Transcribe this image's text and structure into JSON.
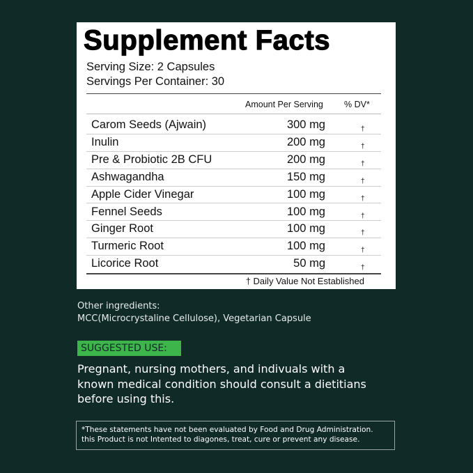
{
  "facts": {
    "title": "Supplement Facts",
    "serving_size": "Serving Size: 2 Capsules",
    "servings_per_container": "Servings Per Container: 30",
    "col_amount": "Amount Per Serving",
    "col_dv": "% DV*",
    "rows": [
      {
        "name": "Carom Seeds (Ajwain)",
        "amount": "300 mg",
        "dv": "†"
      },
      {
        "name": "Inulin",
        "amount": "200 mg",
        "dv": "†"
      },
      {
        "name": "Pre & Probiotic 2B CFU",
        "amount": "200 mg",
        "dv": "†"
      },
      {
        "name": "Ashwagandha",
        "amount": "150 mg",
        "dv": "†"
      },
      {
        "name": "Apple Cider Vinegar",
        "amount": "100 mg",
        "dv": "†"
      },
      {
        "name": "Fennel Seeds",
        "amount": "100 mg",
        "dv": "†"
      },
      {
        "name": "Ginger Root",
        "amount": "100 mg",
        "dv": "†"
      },
      {
        "name": "Turmeric Root",
        "amount": "100 mg",
        "dv": "†"
      },
      {
        "name": "Licorice Root",
        "amount": "50 mg",
        "dv": "†"
      }
    ],
    "footnote": "† Daily Value Not Established"
  },
  "other_ingredients": {
    "label": "Other ingredients:",
    "value": "MCC(Microcrystaline Cellulose), Vegetarian Capsule"
  },
  "suggested_use": {
    "badge": "SUGGESTED USE:",
    "lines": [
      "Pregnant, nursing mothers, and indivuals with a",
      "known medical condition should consult a dietitians",
      "before using this."
    ]
  },
  "disclaimer": {
    "lines": [
      "*These statements have not been evaluated by Food and Drug Administration.",
      "this Product is not Intented to diagones, treat, cure or prevent any disease."
    ]
  },
  "colors": {
    "background": "#0f2a27",
    "accent_green": "#3db54a",
    "panel": "#ffffff"
  }
}
